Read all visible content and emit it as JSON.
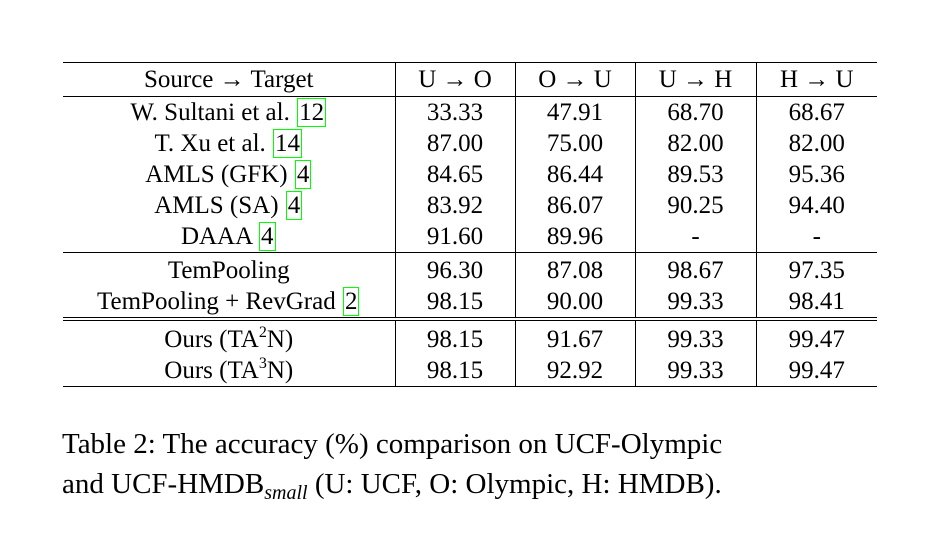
{
  "table": {
    "header": {
      "source_target": "Source → Target",
      "cols": [
        "U → O",
        "O → U",
        "U → H",
        "H → U"
      ]
    },
    "rows": [
      {
        "method": "W. Sultani et al. ",
        "cite": "12",
        "cite_suffix": "",
        "values": [
          "33.33",
          "47.91",
          "68.70",
          "68.67"
        ],
        "bold": [
          false,
          false,
          false,
          false
        ]
      },
      {
        "method": "T. Xu et al.  ",
        "cite": "14",
        "cite_suffix": "",
        "values": [
          "87.00",
          "75.00",
          "82.00",
          "82.00"
        ],
        "bold": [
          false,
          false,
          false,
          false
        ]
      },
      {
        "method": "AMLS (GFK) ",
        "cite": "4",
        "cite_suffix": "",
        "values": [
          "84.65",
          "86.44",
          "89.53",
          "95.36"
        ],
        "bold": [
          false,
          false,
          false,
          false
        ]
      },
      {
        "method": "AMLS (SA) ",
        "cite": "4",
        "cite_suffix": "",
        "values": [
          "83.92",
          "86.07",
          "90.25",
          "94.40"
        ],
        "bold": [
          false,
          false,
          false,
          false
        ]
      },
      {
        "method": "DAAA ",
        "cite": "4",
        "cite_suffix": "",
        "values": [
          "91.60",
          "89.96",
          "-",
          "-"
        ],
        "bold": [
          false,
          false,
          false,
          false
        ]
      },
      {
        "method": "TemPooling",
        "cite": "",
        "cite_suffix": "",
        "values": [
          "96.30",
          "87.08",
          "98.67",
          "97.35"
        ],
        "bold": [
          false,
          false,
          false,
          false
        ]
      },
      {
        "method": "TemPooling + RevGrad ",
        "cite": "2",
        "cite_suffix": "",
        "values": [
          "98.15",
          "90.00",
          "99.33",
          "98.41"
        ],
        "bold": [
          true,
          false,
          true,
          false
        ]
      },
      {
        "method": "Ours (TA",
        "sup": "2",
        "cite": "",
        "cite_suffix": "N)",
        "values": [
          "98.15",
          "91.67",
          "99.33",
          "99.47"
        ],
        "bold": [
          true,
          false,
          true,
          true
        ]
      },
      {
        "method": "Ours (TA",
        "sup": "3",
        "cite": "",
        "cite_suffix": "N)",
        "values": [
          "98.15",
          "92.92",
          "99.33",
          "99.47"
        ],
        "bold": [
          true,
          true,
          true,
          true
        ]
      }
    ]
  },
  "caption": {
    "line1": "Table 2:  The accuracy (%) comparison on UCF-Olympic",
    "line2_pre": "and UCF-HMDB",
    "line2_sub": "small",
    "line2_post": " (U: UCF, O: Olympic, H: HMDB)."
  }
}
